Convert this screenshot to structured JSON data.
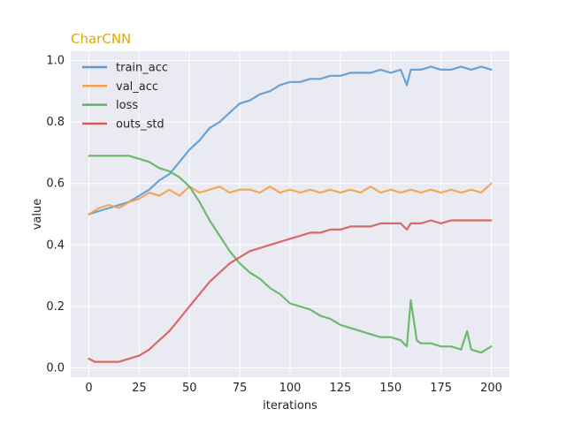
{
  "chart_data": {
    "type": "line",
    "title": "CharCNN",
    "title_color": "#e6a700",
    "xlabel": "iterations",
    "ylabel": "value",
    "xlim": [
      -9,
      209
    ],
    "ylim": [
      -0.03,
      1.03
    ],
    "xticks": [
      0,
      25,
      50,
      75,
      100,
      125,
      150,
      175,
      200
    ],
    "yticks": [
      0.0,
      0.2,
      0.4,
      0.6,
      0.8,
      1.0
    ],
    "ytick_labels": [
      "0.0",
      "0.2",
      "0.4",
      "0.6",
      "0.8",
      "1.0"
    ],
    "grid": true,
    "legend_position": "upper-left",
    "background": "#eaeaf2",
    "series": [
      {
        "name": "train_acc",
        "color": "#5a9bd4",
        "x": [
          0,
          5,
          10,
          15,
          20,
          25,
          30,
          35,
          40,
          45,
          50,
          55,
          60,
          65,
          70,
          75,
          80,
          85,
          90,
          95,
          100,
          105,
          110,
          115,
          120,
          125,
          130,
          135,
          140,
          145,
          150,
          155,
          158,
          160,
          165,
          170,
          175,
          180,
          185,
          190,
          195,
          200
        ],
        "y": [
          0.5,
          0.51,
          0.52,
          0.53,
          0.54,
          0.56,
          0.58,
          0.61,
          0.63,
          0.67,
          0.71,
          0.74,
          0.78,
          0.8,
          0.83,
          0.86,
          0.87,
          0.89,
          0.9,
          0.92,
          0.93,
          0.93,
          0.94,
          0.94,
          0.95,
          0.95,
          0.96,
          0.96,
          0.96,
          0.97,
          0.96,
          0.97,
          0.92,
          0.97,
          0.97,
          0.98,
          0.97,
          0.97,
          0.98,
          0.97,
          0.98,
          0.97
        ]
      },
      {
        "name": "val_acc",
        "color": "#f5a04a",
        "x": [
          0,
          5,
          10,
          15,
          20,
          25,
          30,
          35,
          40,
          45,
          50,
          55,
          60,
          65,
          70,
          75,
          80,
          85,
          90,
          95,
          100,
          105,
          110,
          115,
          120,
          125,
          130,
          135,
          140,
          145,
          150,
          155,
          160,
          165,
          170,
          175,
          180,
          185,
          190,
          195,
          200
        ],
        "y": [
          0.5,
          0.52,
          0.53,
          0.52,
          0.54,
          0.55,
          0.57,
          0.56,
          0.58,
          0.56,
          0.59,
          0.57,
          0.58,
          0.59,
          0.57,
          0.58,
          0.58,
          0.57,
          0.59,
          0.57,
          0.58,
          0.57,
          0.58,
          0.57,
          0.58,
          0.57,
          0.58,
          0.57,
          0.59,
          0.57,
          0.58,
          0.57,
          0.58,
          0.57,
          0.58,
          0.57,
          0.58,
          0.57,
          0.58,
          0.57,
          0.6
        ]
      },
      {
        "name": "loss",
        "color": "#5fb463",
        "x": [
          0,
          5,
          10,
          15,
          20,
          25,
          30,
          35,
          40,
          45,
          50,
          55,
          60,
          65,
          70,
          75,
          80,
          85,
          90,
          95,
          100,
          105,
          110,
          115,
          120,
          125,
          130,
          135,
          140,
          145,
          150,
          155,
          158,
          160,
          163,
          165,
          170,
          175,
          180,
          185,
          188,
          190,
          195,
          200
        ],
        "y": [
          0.69,
          0.69,
          0.69,
          0.69,
          0.69,
          0.68,
          0.67,
          0.65,
          0.64,
          0.62,
          0.59,
          0.54,
          0.48,
          0.43,
          0.38,
          0.34,
          0.31,
          0.29,
          0.26,
          0.24,
          0.21,
          0.2,
          0.19,
          0.17,
          0.16,
          0.14,
          0.13,
          0.12,
          0.11,
          0.1,
          0.1,
          0.09,
          0.07,
          0.22,
          0.09,
          0.08,
          0.08,
          0.07,
          0.07,
          0.06,
          0.12,
          0.06,
          0.05,
          0.07
        ]
      },
      {
        "name": "outs_std",
        "color": "#d65a5a",
        "x": [
          0,
          3,
          5,
          10,
          15,
          20,
          25,
          30,
          35,
          40,
          45,
          50,
          55,
          60,
          65,
          70,
          75,
          80,
          85,
          90,
          95,
          100,
          105,
          110,
          115,
          120,
          125,
          130,
          135,
          140,
          145,
          150,
          155,
          158,
          160,
          165,
          170,
          175,
          180,
          185,
          190,
          195,
          200
        ],
        "y": [
          0.03,
          0.02,
          0.02,
          0.02,
          0.02,
          0.03,
          0.04,
          0.06,
          0.09,
          0.12,
          0.16,
          0.2,
          0.24,
          0.28,
          0.31,
          0.34,
          0.36,
          0.38,
          0.39,
          0.4,
          0.41,
          0.42,
          0.43,
          0.44,
          0.44,
          0.45,
          0.45,
          0.46,
          0.46,
          0.46,
          0.47,
          0.47,
          0.47,
          0.45,
          0.47,
          0.47,
          0.48,
          0.47,
          0.48,
          0.48,
          0.48,
          0.48,
          0.48
        ]
      }
    ]
  }
}
